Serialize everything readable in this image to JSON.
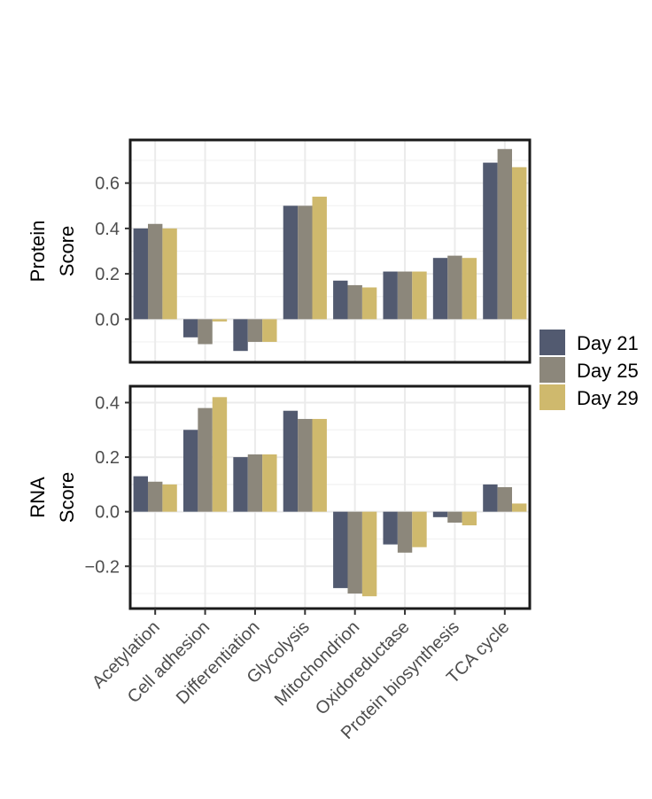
{
  "chart_data": {
    "type": "bar",
    "categories": [
      "Acetylation",
      "Cell adhesion",
      "Differentiation",
      "Glycolysis",
      "Mitochondrion",
      "Oxidoreductase",
      "Protein biosynthesis",
      "TCA cycle"
    ],
    "legend": {
      "position": "right",
      "entries": [
        {
          "name": "Day 21",
          "color": "#525a70"
        },
        {
          "name": "Day 25",
          "color": "#8c877b"
        },
        {
          "name": "Day 29",
          "color": "#cfb96d"
        }
      ]
    },
    "panels": [
      {
        "id": "protein",
        "ylabel_line1": "Protein",
        "ylabel_line2": "Score",
        "ylim": [
          -0.19,
          0.79
        ],
        "yticks": [
          0.0,
          0.2,
          0.4,
          0.6
        ],
        "ytick_labels": [
          "0.0",
          "0.2",
          "0.4",
          "0.6"
        ],
        "series": [
          {
            "name": "Day 21",
            "values": [
              0.4,
              -0.08,
              -0.14,
              0.5,
              0.17,
              0.21,
              0.27,
              0.69
            ]
          },
          {
            "name": "Day 25",
            "values": [
              0.42,
              -0.11,
              -0.1,
              0.5,
              0.15,
              0.21,
              0.28,
              0.75
            ]
          },
          {
            "name": "Day 29",
            "values": [
              0.4,
              -0.01,
              -0.1,
              0.54,
              0.14,
              0.21,
              0.27,
              0.67
            ]
          }
        ]
      },
      {
        "id": "rna",
        "ylabel_line1": "RNA",
        "ylabel_line2": "Score",
        "ylim": [
          -0.355,
          0.46
        ],
        "yticks": [
          -0.2,
          0.0,
          0.2,
          0.4
        ],
        "ytick_labels": [
          "−0.2",
          "0.0",
          "0.2",
          "0.4"
        ],
        "series": [
          {
            "name": "Day 21",
            "values": [
              0.13,
              0.3,
              0.2,
              0.37,
              -0.28,
              -0.12,
              -0.02,
              0.1
            ]
          },
          {
            "name": "Day 25",
            "values": [
              0.11,
              0.38,
              0.21,
              0.34,
              -0.3,
              -0.15,
              -0.04,
              0.09
            ]
          },
          {
            "name": "Day 29",
            "values": [
              0.1,
              0.42,
              0.21,
              0.34,
              -0.31,
              -0.13,
              -0.05,
              0.03
            ]
          }
        ]
      }
    ],
    "grid": true
  }
}
